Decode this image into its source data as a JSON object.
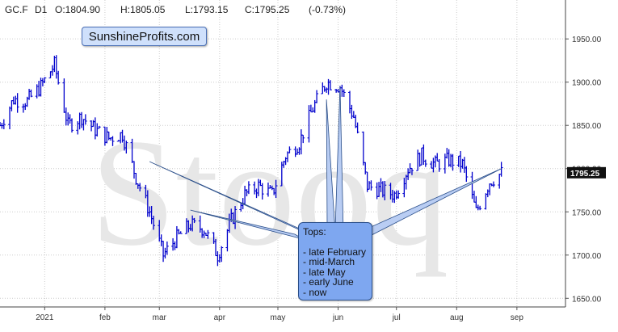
{
  "header": {
    "symbol": "GC.F",
    "timeframe": "D1",
    "open": "O:1804.90",
    "high": "H:1805.05",
    "low": "L:1793.15",
    "close": "C:1795.25",
    "change": "(-0.73%)"
  },
  "brand": "SunshineProfits.com",
  "watermark": "Stooq",
  "annotation": {
    "title": "Tops:",
    "items": [
      "- late February",
      "- mid-March",
      "- late May",
      "- early June",
      "- now"
    ]
  },
  "colors": {
    "bars": "#0000cc",
    "callout_fill": "#7ea7f0",
    "callout_border": "#2b4f8a",
    "brand_fill": "#cfe0fb",
    "price_marker": "#111111"
  },
  "chart_data": {
    "type": "ohlc",
    "title": "",
    "xlabel": "",
    "ylabel": "",
    "x_ticks": [
      "2021",
      "feb",
      "mar",
      "apr",
      "may",
      "jun",
      "jul",
      "aug",
      "sep"
    ],
    "y_ticks": [
      "1950.00",
      "1900.00",
      "1850.00",
      "1800.00",
      "1750.00",
      "1700.00",
      "1650.00"
    ],
    "ylim": [
      1640,
      1995
    ],
    "grid": true,
    "last_price_label": "1795.25",
    "series": [
      {
        "x": [
          "2020-12-09",
          "2020-12-16",
          "2020-12-23",
          "2020-12-30",
          "2021-01-06",
          "2021-01-13",
          "2021-01-20",
          "2021-01-27",
          "2021-02-03",
          "2021-02-10",
          "2021-02-17",
          "2021-02-24",
          "2021-03-03",
          "2021-03-10",
          "2021-03-17",
          "2021-03-24",
          "2021-03-31",
          "2021-04-07",
          "2021-04-14",
          "2021-04-21",
          "2021-04-28",
          "2021-05-05",
          "2021-05-12",
          "2021-05-19",
          "2021-05-26",
          "2021-06-02",
          "2021-06-09",
          "2021-06-16",
          "2021-06-23",
          "2021-06-30",
          "2021-07-07",
          "2021-07-14",
          "2021-07-21",
          "2021-07-28",
          "2021-08-04",
          "2021-08-11",
          "2021-08-18",
          "2021-08-24"
        ],
        "close": [
          1850,
          1880,
          1878,
          1895,
          1920,
          1850,
          1860,
          1845,
          1835,
          1840,
          1790,
          1750,
          1700,
          1720,
          1735,
          1730,
          1700,
          1740,
          1770,
          1780,
          1770,
          1815,
          1830,
          1870,
          1900,
          1895,
          1860,
          1780,
          1775,
          1770,
          1800,
          1815,
          1805,
          1810,
          1805,
          1750,
          1785,
          1795
        ]
      }
    ],
    "callout_targets": [
      {
        "label": "late February",
        "date": "2021-02-24",
        "price": 1808
      },
      {
        "label": "mid-March",
        "date": "2021-03-17",
        "price": 1752
      },
      {
        "label": "late May",
        "date": "2021-05-26",
        "price": 1880
      },
      {
        "label": "early June",
        "date": "2021-06-02",
        "price": 1895
      },
      {
        "label": "now",
        "date": "2021-08-24",
        "price": 1800
      }
    ]
  }
}
